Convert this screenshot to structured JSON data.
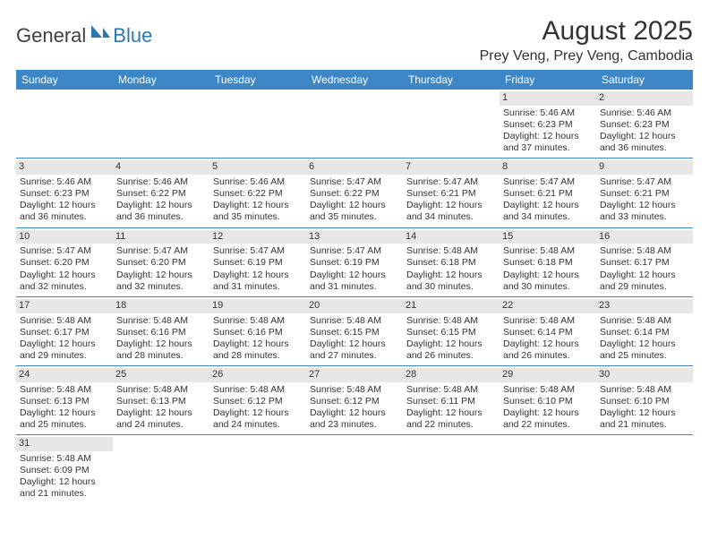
{
  "logo": {
    "text1": "General",
    "text2": "Blue"
  },
  "title": "August 2025",
  "location": "Prey Veng, Prey Veng, Cambodia",
  "colors": {
    "header_bg": "#3d87c7",
    "header_text": "#ffffff",
    "daynum_bg": "#e7e7e7",
    "rule": "#3d87c7",
    "logo_blue": "#2a7ab0",
    "logo_gray": "#404040"
  },
  "weekdays": [
    "Sunday",
    "Monday",
    "Tuesday",
    "Wednesday",
    "Thursday",
    "Friday",
    "Saturday"
  ],
  "days": {
    "1": {
      "sr": "5:46 AM",
      "ss": "6:23 PM",
      "dl": "12 hours and 37 minutes."
    },
    "2": {
      "sr": "5:46 AM",
      "ss": "6:23 PM",
      "dl": "12 hours and 36 minutes."
    },
    "3": {
      "sr": "5:46 AM",
      "ss": "6:23 PM",
      "dl": "12 hours and 36 minutes."
    },
    "4": {
      "sr": "5:46 AM",
      "ss": "6:22 PM",
      "dl": "12 hours and 36 minutes."
    },
    "5": {
      "sr": "5:46 AM",
      "ss": "6:22 PM",
      "dl": "12 hours and 35 minutes."
    },
    "6": {
      "sr": "5:47 AM",
      "ss": "6:22 PM",
      "dl": "12 hours and 35 minutes."
    },
    "7": {
      "sr": "5:47 AM",
      "ss": "6:21 PM",
      "dl": "12 hours and 34 minutes."
    },
    "8": {
      "sr": "5:47 AM",
      "ss": "6:21 PM",
      "dl": "12 hours and 34 minutes."
    },
    "9": {
      "sr": "5:47 AM",
      "ss": "6:21 PM",
      "dl": "12 hours and 33 minutes."
    },
    "10": {
      "sr": "5:47 AM",
      "ss": "6:20 PM",
      "dl": "12 hours and 32 minutes."
    },
    "11": {
      "sr": "5:47 AM",
      "ss": "6:20 PM",
      "dl": "12 hours and 32 minutes."
    },
    "12": {
      "sr": "5:47 AM",
      "ss": "6:19 PM",
      "dl": "12 hours and 31 minutes."
    },
    "13": {
      "sr": "5:47 AM",
      "ss": "6:19 PM",
      "dl": "12 hours and 31 minutes."
    },
    "14": {
      "sr": "5:48 AM",
      "ss": "6:18 PM",
      "dl": "12 hours and 30 minutes."
    },
    "15": {
      "sr": "5:48 AM",
      "ss": "6:18 PM",
      "dl": "12 hours and 30 minutes."
    },
    "16": {
      "sr": "5:48 AM",
      "ss": "6:17 PM",
      "dl": "12 hours and 29 minutes."
    },
    "17": {
      "sr": "5:48 AM",
      "ss": "6:17 PM",
      "dl": "12 hours and 29 minutes."
    },
    "18": {
      "sr": "5:48 AM",
      "ss": "6:16 PM",
      "dl": "12 hours and 28 minutes."
    },
    "19": {
      "sr": "5:48 AM",
      "ss": "6:16 PM",
      "dl": "12 hours and 28 minutes."
    },
    "20": {
      "sr": "5:48 AM",
      "ss": "6:15 PM",
      "dl": "12 hours and 27 minutes."
    },
    "21": {
      "sr": "5:48 AM",
      "ss": "6:15 PM",
      "dl": "12 hours and 26 minutes."
    },
    "22": {
      "sr": "5:48 AM",
      "ss": "6:14 PM",
      "dl": "12 hours and 26 minutes."
    },
    "23": {
      "sr": "5:48 AM",
      "ss": "6:14 PM",
      "dl": "12 hours and 25 minutes."
    },
    "24": {
      "sr": "5:48 AM",
      "ss": "6:13 PM",
      "dl": "12 hours and 25 minutes."
    },
    "25": {
      "sr": "5:48 AM",
      "ss": "6:13 PM",
      "dl": "12 hours and 24 minutes."
    },
    "26": {
      "sr": "5:48 AM",
      "ss": "6:12 PM",
      "dl": "12 hours and 24 minutes."
    },
    "27": {
      "sr": "5:48 AM",
      "ss": "6:12 PM",
      "dl": "12 hours and 23 minutes."
    },
    "28": {
      "sr": "5:48 AM",
      "ss": "6:11 PM",
      "dl": "12 hours and 22 minutes."
    },
    "29": {
      "sr": "5:48 AM",
      "ss": "6:10 PM",
      "dl": "12 hours and 22 minutes."
    },
    "30": {
      "sr": "5:48 AM",
      "ss": "6:10 PM",
      "dl": "12 hours and 21 minutes."
    },
    "31": {
      "sr": "5:48 AM",
      "ss": "6:09 PM",
      "dl": "12 hours and 21 minutes."
    }
  },
  "labels": {
    "sunrise": "Sunrise: ",
    "sunset": "Sunset: ",
    "daylight": "Daylight: "
  },
  "layout": {
    "grid": [
      [
        0,
        0,
        0,
        0,
        0,
        1,
        2
      ],
      [
        3,
        4,
        5,
        6,
        7,
        8,
        9
      ],
      [
        10,
        11,
        12,
        13,
        14,
        15,
        16
      ],
      [
        17,
        18,
        19,
        20,
        21,
        22,
        23
      ],
      [
        24,
        25,
        26,
        27,
        28,
        29,
        30
      ],
      [
        31,
        0,
        0,
        0,
        0,
        0,
        0
      ]
    ]
  }
}
